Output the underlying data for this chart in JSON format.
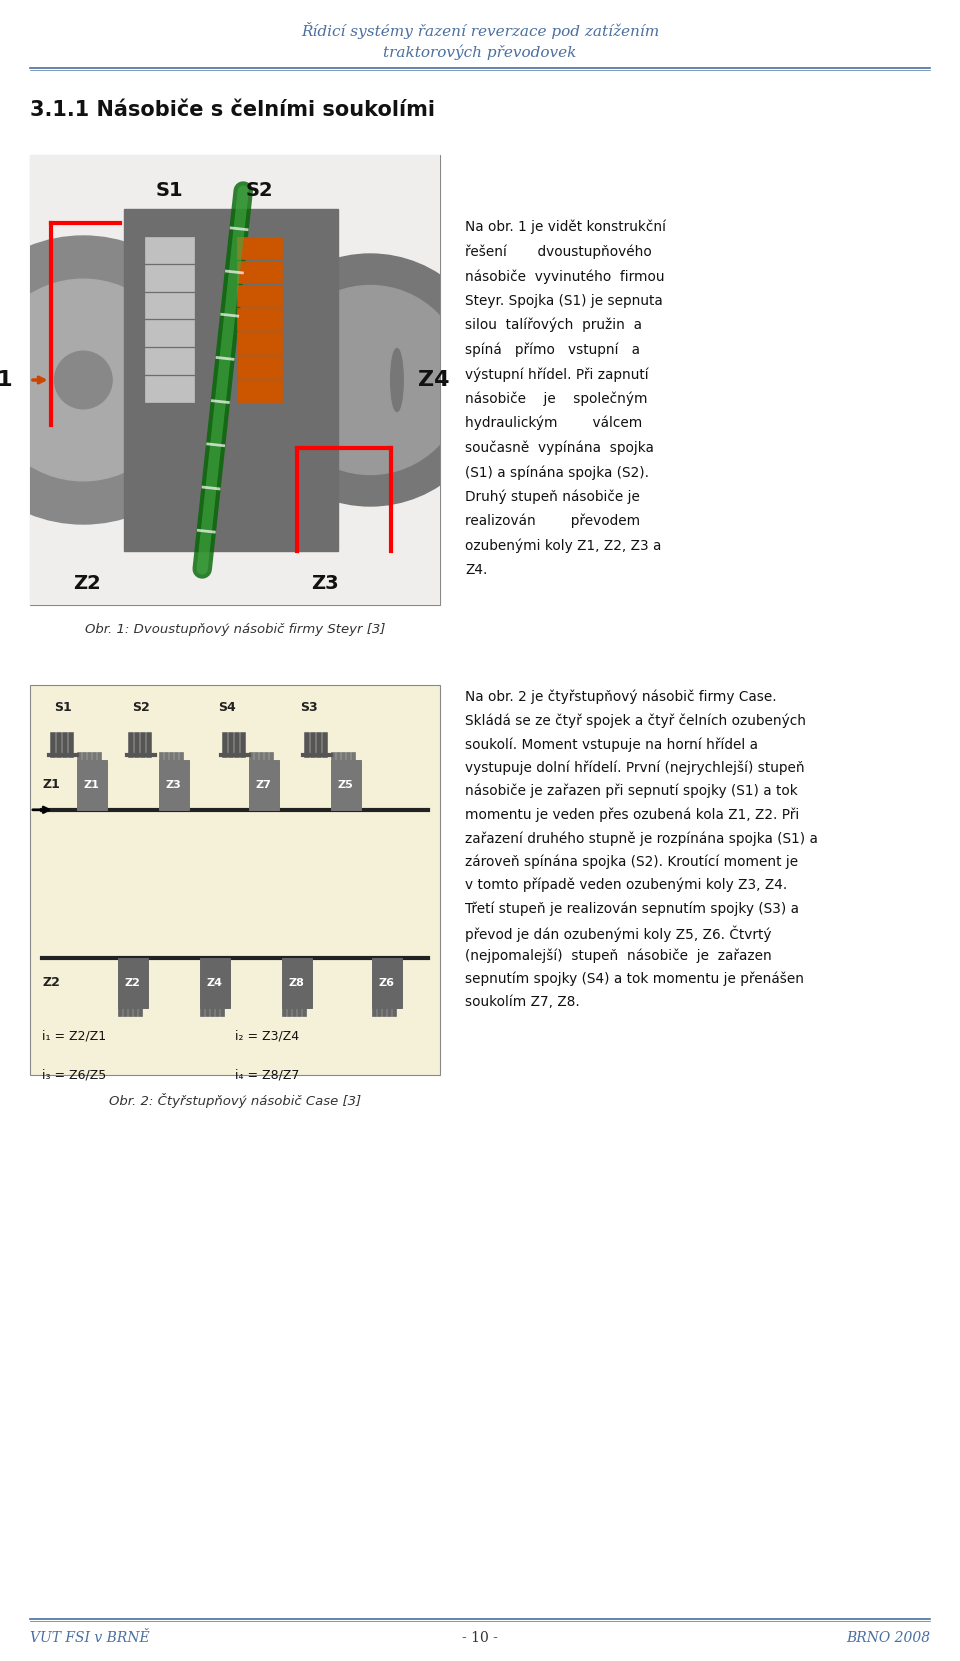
{
  "page_width": 9.6,
  "page_height": 16.61,
  "bg_color": "#ffffff",
  "header_color": "#4a6fa0",
  "header_text_line1": "Řídicí systémy řazení reverzace pod zatížením",
  "header_text_line2": "traktorových převodovek",
  "footer_left": "VUT FSI v BRNĚ",
  "footer_center": "- 10 -",
  "footer_right": "BRNO 2008",
  "section_title": "3.1.1 Násobiče s čelními soukolími",
  "fig1_caption": "Obr. 1: Dvoustupňový násobič firmy Steyr [3]",
  "fig2_caption": "Obr. 2: Čtyřstupňový násobič Case [3]",
  "right_text1": [
    "Na obr. 1 je vidět konstrukční",
    "řešení       dvoustupňového",
    "násobiče  vyvinutého  firmou",
    "Steyr. Spojka (S1) je sepnuta",
    "silou  talířových  pružin  a",
    "spíná   přímo   vstupní   a",
    "výstupní hřídel. Při zapnutí",
    "násobiče    je    společným",
    "hydraulickým        válcem",
    "současně  vypínána  spojka",
    "(S1) a spínána spojka (S2).",
    "Druhý stupeň násobiče je",
    "realizován        převodem",
    "ozubenými koly Z1, Z2, Z3 a",
    "Z4."
  ],
  "right_text2": [
    "Na obr. 2 je čtyřstupňový násobič firmy Case.",
    "Skládá se ze čtyř spojek a čtyř čelních ozubených",
    "soukolí. Moment vstupuje na horní hřídel a",
    "vystupuje dolní hřídelí. První (nejrychlejší) stupeň",
    "násobiče je zařazen při sepnutí spojky (S1) a tok",
    "momentu je veden přes ozubená kola Z1, Z2. Při",
    "zařazení druhého stupně je rozpínána spojka (S1) a",
    "zároveň spínána spojka (S2). Kroutící moment je",
    "v tomto případě veden ozubenými koly Z3, Z4.",
    "Třetí stupeň je realizován sepnutím spojky (S3) a",
    "převod je dán ozubenými koly Z5, Z6. Čtvrtý",
    "(nejpomalejší)  stupeň  násobiče  je  zařazen",
    "sepnutím spojky (S4) a tok momentu je přenášen",
    "soukolím Z7, Z8."
  ]
}
